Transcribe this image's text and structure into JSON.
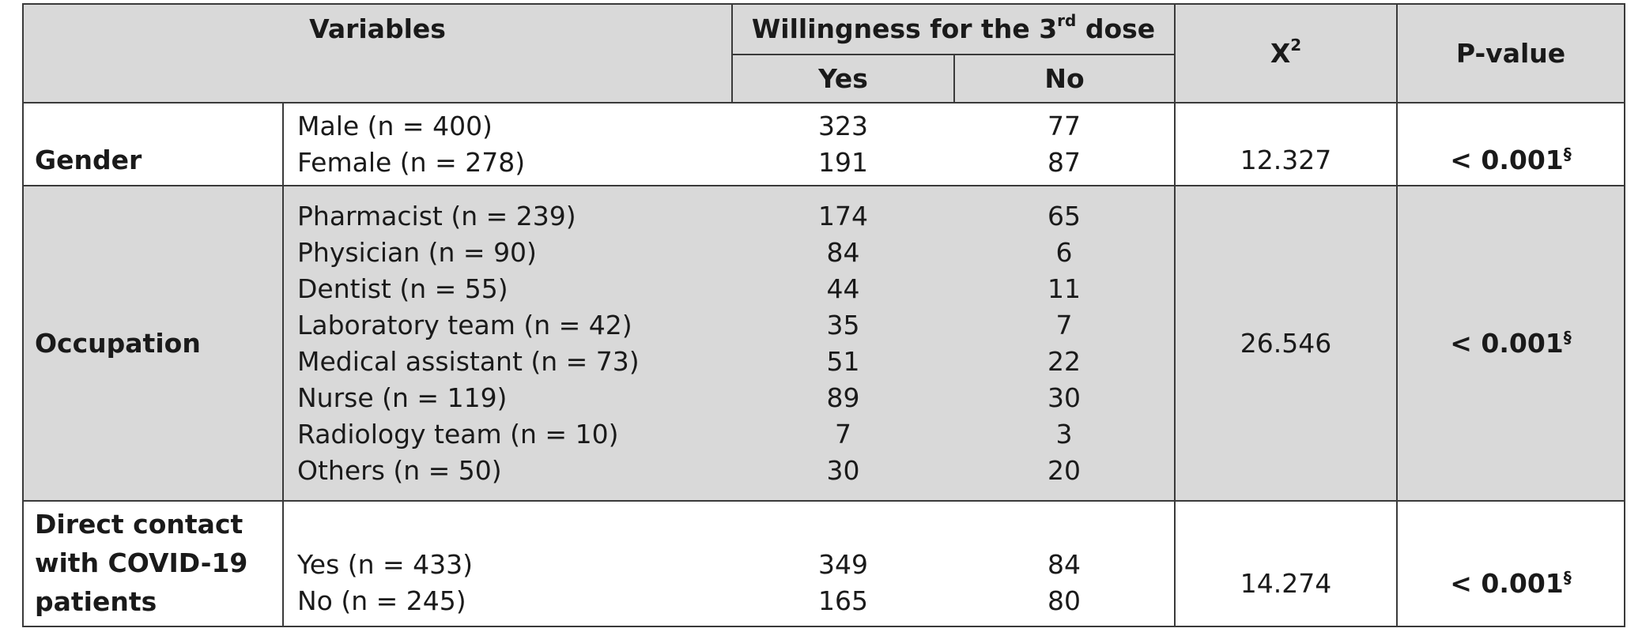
{
  "header": {
    "variables": "Variables",
    "willingness_main": "Willingness for the 3",
    "willingness_sup": "rd",
    "willingness_tail": " dose",
    "yes": "Yes",
    "no": "No",
    "chi_base": "X",
    "chi_sup": "2",
    "pvalue": "P-value"
  },
  "rows": [
    {
      "variable": "Gender",
      "subs": [
        "Male (n = 400)",
        "Female (n = 278)"
      ],
      "yes": [
        "323",
        "191"
      ],
      "no": [
        "77",
        "87"
      ],
      "chi2": "12.327",
      "p": "< 0.001",
      "p_mark": "§"
    },
    {
      "variable": "Occupation",
      "subs": [
        "Pharmacist (n = 239)",
        "Physician (n = 90)",
        "Dentist (n = 55)",
        "Laboratory team (n = 42)",
        "Medical assistant (n = 73)",
        "Nurse (n = 119)",
        "Radiology team (n = 10)",
        "Others (n = 50)"
      ],
      "yes": [
        "174",
        "84",
        "44",
        "35",
        "51",
        "89",
        "7",
        "30"
      ],
      "no": [
        "65",
        "6",
        "11",
        "7",
        "22",
        "30",
        "3",
        "20"
      ],
      "chi2": "26.546",
      "p": "< 0.001",
      "p_mark": "§"
    },
    {
      "variable_lines": [
        "Direct contact",
        "with COVID-19",
        "patients"
      ],
      "subs": [
        "Yes (n = 433)",
        "No (n = 245)"
      ],
      "yes": [
        "349",
        "165"
      ],
      "no": [
        "84",
        "80"
      ],
      "chi2": "14.274",
      "p": "< 0.001",
      "p_mark": "§"
    }
  ]
}
